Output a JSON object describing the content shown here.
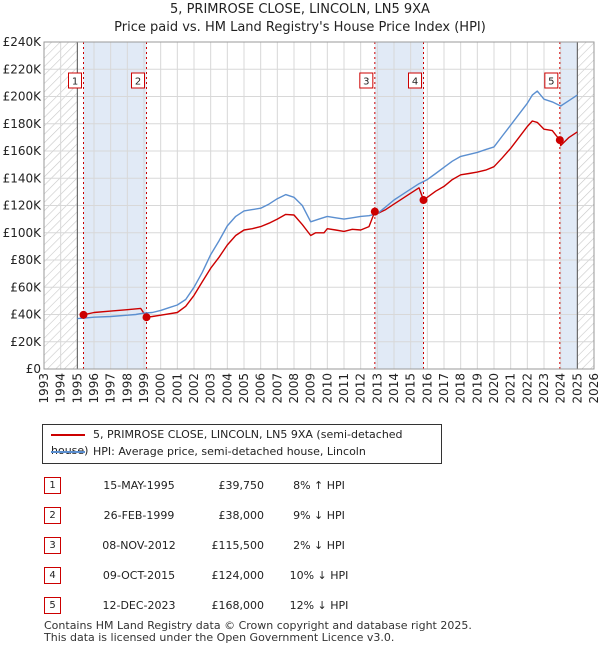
{
  "titles": {
    "line1": "5, PRIMROSE CLOSE, LINCOLN, LN5 9XA",
    "line2": "Price paid vs. HM Land Registry's House Price Index (HPI)"
  },
  "chart_data": {
    "type": "line",
    "title": "5, PRIMROSE CLOSE, LINCOLN, LN5 9XA — Price paid vs. HM Land Registry's House Price Index (HPI)",
    "xlabel": "",
    "ylabel": "",
    "xlim": [
      1993,
      2026
    ],
    "ylim": [
      0,
      240000
    ],
    "x_ticks": [
      1993,
      1994,
      1995,
      1996,
      1997,
      1998,
      1999,
      2000,
      2001,
      2002,
      2003,
      2004,
      2005,
      2006,
      2007,
      2008,
      2009,
      2010,
      2011,
      2012,
      2013,
      2014,
      2015,
      2016,
      2017,
      2018,
      2019,
      2020,
      2021,
      2022,
      2023,
      2024,
      2025,
      2026
    ],
    "y_ticks": [
      0,
      20000,
      40000,
      60000,
      80000,
      100000,
      120000,
      140000,
      160000,
      180000,
      200000,
      220000,
      240000
    ],
    "y_tick_labels": [
      "£0",
      "£20K",
      "£40K",
      "£60K",
      "£80K",
      "£100K",
      "£120K",
      "£140K",
      "£160K",
      "£180K",
      "£200K",
      "£220K",
      "£240K"
    ],
    "grid": true,
    "hatched_regions": [
      [
        1993,
        1995.0
      ],
      [
        2025.0,
        2026
      ]
    ],
    "shaded_bands": [
      [
        1995.37,
        1999.15
      ],
      [
        2012.85,
        2015.77
      ],
      [
        2023.95,
        2025.0
      ]
    ],
    "series": [
      {
        "name": "5, PRIMROSE CLOSE, LINCOLN, LN5 9XA (semi-detached house)",
        "color": "#cc0000",
        "x": [
          1995.37,
          1996,
          1997,
          1998,
          1998.8,
          1999.15,
          1999.5,
          2000,
          2001,
          2001.5,
          2002,
          2002.5,
          2003,
          2003.5,
          2004,
          2004.5,
          2005,
          2005.5,
          2006,
          2006.5,
          2007,
          2007.5,
          2008,
          2008.5,
          2009,
          2009.3,
          2009.8,
          2010,
          2010.5,
          2011,
          2011.5,
          2012,
          2012.5,
          2012.85,
          2013,
          2013.5,
          2014,
          2014.5,
          2015,
          2015.5,
          2015.77,
          2016,
          2016.5,
          2017,
          2017.5,
          2018,
          2018.5,
          2019,
          2019.5,
          2020,
          2020.5,
          2021,
          2021.5,
          2022,
          2022.3,
          2022.6,
          2023,
          2023.5,
          2023.95,
          2024,
          2024.5,
          2025
        ],
        "y": [
          39750,
          41500,
          42500,
          43500,
          44500,
          38000,
          38500,
          39500,
          41500,
          46000,
          54000,
          64000,
          74000,
          82000,
          91000,
          98000,
          102000,
          103000,
          104500,
          107000,
          110000,
          113500,
          113000,
          106000,
          98000,
          100000,
          100000,
          103000,
          102000,
          101000,
          102500,
          102000,
          104500,
          115500,
          114000,
          117000,
          121000,
          125000,
          129000,
          133000,
          124000,
          126000,
          130500,
          134000,
          139000,
          142500,
          143500,
          144500,
          146000,
          148500,
          155000,
          162000,
          170000,
          178000,
          182000,
          181000,
          176000,
          175000,
          168000,
          164000,
          170000,
          174000
        ]
      },
      {
        "name": "HPI: Average price, semi-detached house, Lincoln",
        "color": "#5b8fd0",
        "x": [
          1995.0,
          1995.5,
          1996,
          1997,
          1998,
          1998.5,
          1999,
          1999.5,
          2000,
          2000.5,
          2001,
          2001.5,
          2002,
          2002.5,
          2003,
          2003.5,
          2004,
          2004.5,
          2005,
          2005.5,
          2006,
          2006.5,
          2007,
          2007.5,
          2008,
          2008.5,
          2009,
          2009.5,
          2010,
          2010.5,
          2011,
          2011.5,
          2012,
          2012.5,
          2013,
          2013.5,
          2014,
          2014.5,
          2015,
          2015.5,
          2016,
          2016.5,
          2017,
          2017.5,
          2018,
          2018.5,
          2019,
          2019.5,
          2020,
          2020.5,
          2021,
          2021.5,
          2022,
          2022.3,
          2022.6,
          2023,
          2023.5,
          2024,
          2024.5,
          2025
        ],
        "y": [
          37000,
          37500,
          38000,
          38500,
          39500,
          40000,
          41000,
          41500,
          43000,
          45000,
          47000,
          51000,
          60000,
          71000,
          84000,
          94000,
          105000,
          112000,
          116000,
          117000,
          118000,
          121000,
          125000,
          128000,
          126000,
          120000,
          108000,
          110000,
          112000,
          111000,
          110000,
          111000,
          112000,
          112500,
          114000,
          119000,
          124000,
          128000,
          132000,
          136000,
          139000,
          143500,
          148000,
          152500,
          156000,
          157500,
          159000,
          161000,
          163000,
          171000,
          179000,
          187000,
          195000,
          201000,
          204000,
          198000,
          196000,
          193000,
          197000,
          201000
        ]
      }
    ],
    "sales": [
      {
        "n": "1",
        "x": 1995.37,
        "y": 39750
      },
      {
        "n": "2",
        "x": 1999.15,
        "y": 38000
      },
      {
        "n": "3",
        "x": 2012.85,
        "y": 115500
      },
      {
        "n": "4",
        "x": 2015.77,
        "y": 124000
      },
      {
        "n": "5",
        "x": 2023.95,
        "y": 168000
      }
    ]
  },
  "legend": {
    "property": "5, PRIMROSE CLOSE, LINCOLN, LN5 9XA (semi-detached house)",
    "hpi": "HPI: Average price, semi-detached house, Lincoln"
  },
  "transactions": [
    {
      "n": "1",
      "date": "15-MAY-1995",
      "price": "£39,750",
      "hpi": "8% ↑ HPI"
    },
    {
      "n": "2",
      "date": "26-FEB-1999",
      "price": "£38,000",
      "hpi": "9% ↓ HPI"
    },
    {
      "n": "3",
      "date": "08-NOV-2012",
      "price": "£115,500",
      "hpi": "2% ↓ HPI"
    },
    {
      "n": "4",
      "date": "09-OCT-2015",
      "price": "£124,000",
      "hpi": "10% ↓ HPI"
    },
    {
      "n": "5",
      "date": "12-DEC-2023",
      "price": "£168,000",
      "hpi": "12% ↓ HPI"
    }
  ],
  "footer": {
    "line1": "Contains HM Land Registry data © Crown copyright and database right 2025.",
    "line2": "This data is licensed under the Open Government Licence v3.0."
  }
}
